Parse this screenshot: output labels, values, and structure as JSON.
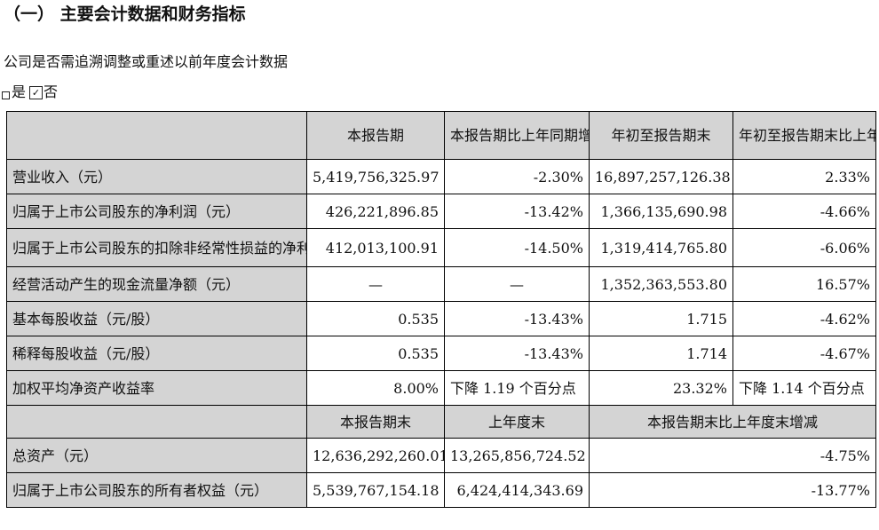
{
  "heading": "（一） 主要会计数据和财务指标",
  "question": "公司是否需追溯调整或重述以前年度会计数据",
  "options": {
    "yes_label": "是",
    "no_label": "否",
    "checked_mark": "✓"
  },
  "table1": {
    "headers": [
      "",
      "本报告期",
      "本报告期比上年同期增减",
      "年初至报告期末",
      "年初至报告期末比上年同期增减"
    ],
    "rows": [
      {
        "label": "营业收入（元）",
        "values": [
          "5,419,756,325.97",
          "-2.30%",
          "16,897,257,126.38",
          "2.33%"
        ]
      },
      {
        "label": "归属于上市公司股东的净利润（元）",
        "values": [
          "426,221,896.85",
          "-13.42%",
          "1,366,135,690.98",
          "-4.66%"
        ]
      },
      {
        "label": "归属于上市公司股东的扣除非经常性损益的净利润（元）",
        "values": [
          "412,013,100.91",
          "-14.50%",
          "1,319,414,765.80",
          "-6.06%"
        ]
      },
      {
        "label": "经营活动产生的现金流量净额（元）",
        "values": [
          "—",
          "—",
          "1,352,363,553.80",
          "16.57%"
        ]
      },
      {
        "label": "基本每股收益（元/股）",
        "values": [
          "0.535",
          "-13.43%",
          "1.715",
          "-4.62%"
        ]
      },
      {
        "label": "稀释每股收益（元/股）",
        "values": [
          "0.535",
          "-13.43%",
          "1.714",
          "-4.67%"
        ]
      },
      {
        "label": "加权平均净资产收益率",
        "values": [
          "8.00%",
          "下降 1.19 个百分点",
          "23.32%",
          "下降 1.14 个百分点"
        ]
      }
    ]
  },
  "table2": {
    "headers": [
      "",
      "本报告期末",
      "上年度末",
      "本报告期末比上年度末增减"
    ],
    "rows": [
      {
        "label": "总资产（元）",
        "values": [
          "12,636,292,260.01",
          "13,265,856,724.52",
          "-4.75%"
        ]
      },
      {
        "label": "归属于上市公司股东的所有者权益（元）",
        "values": [
          "5,539,767,154.18",
          "6,424,414,343.69",
          "-13.77%"
        ]
      }
    ]
  }
}
